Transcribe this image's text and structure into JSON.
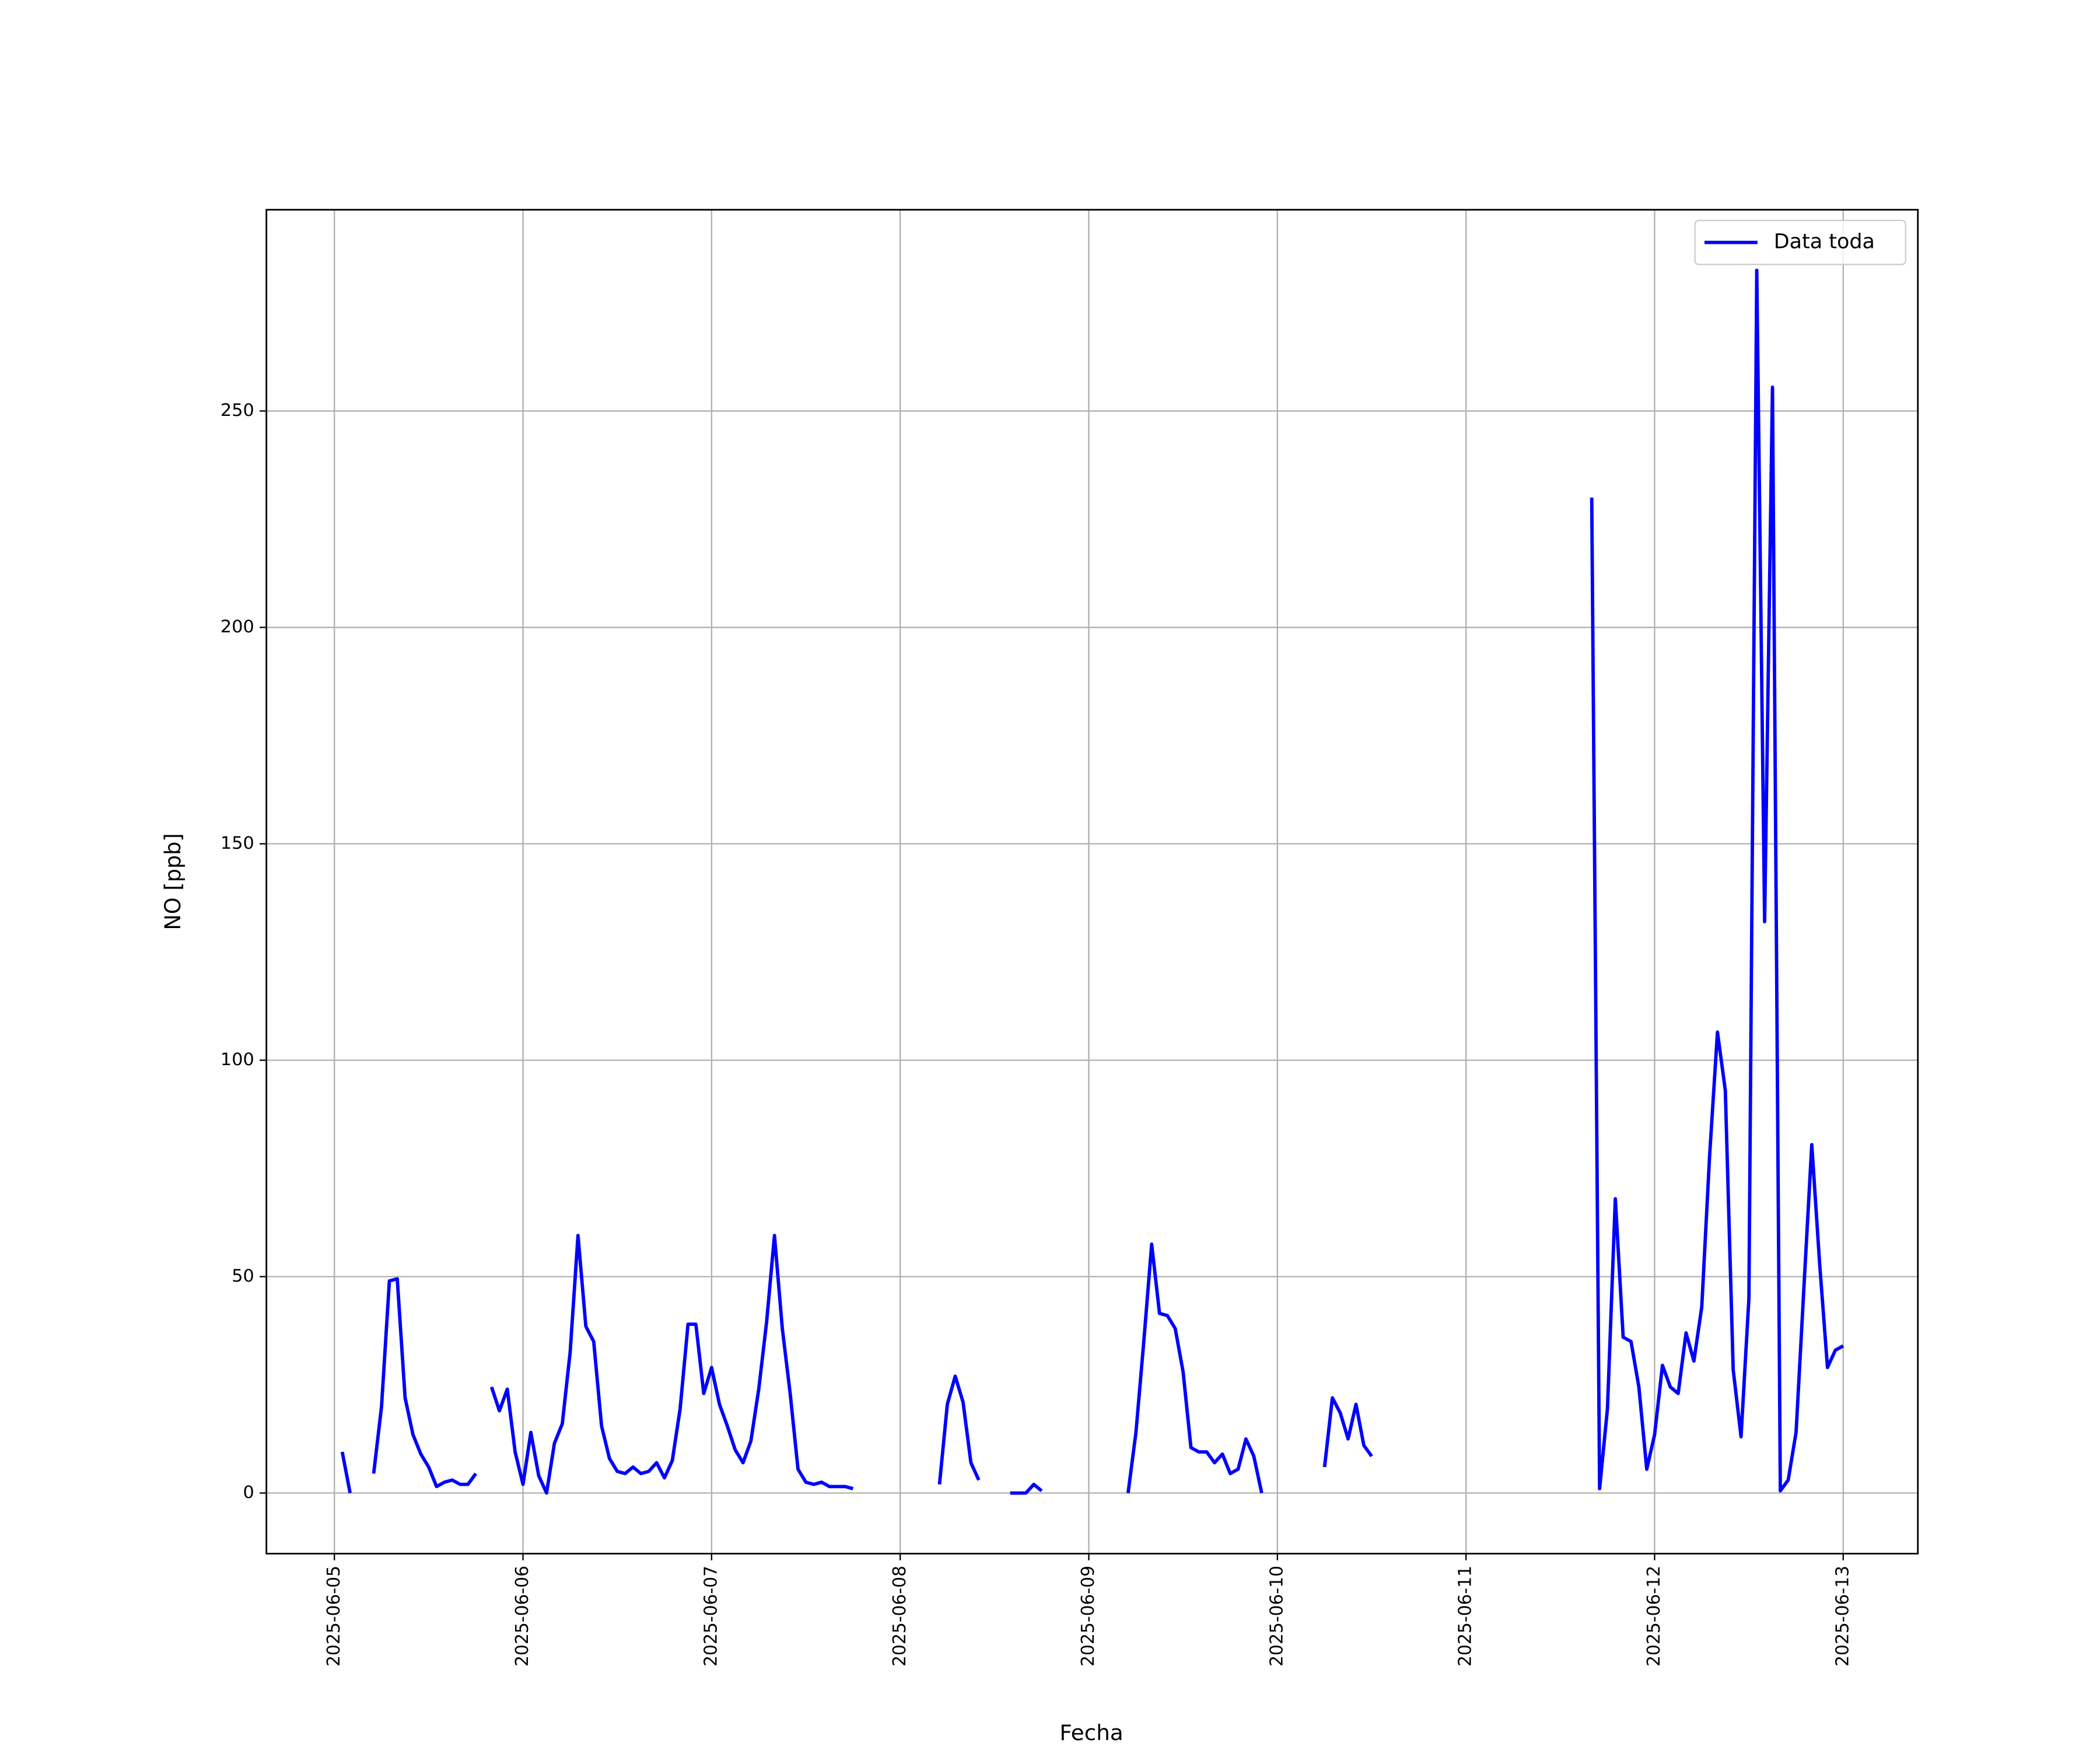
{
  "chart_data": {
    "type": "line",
    "xlabel": "Fecha",
    "ylabel": "NO [ppb]",
    "x": [
      "2025-06-05 01:00",
      "2025-06-05 02:00",
      "2025-06-05 03:00",
      "2025-06-05 05:00",
      "2025-06-05 06:00",
      "2025-06-05 07:00",
      "2025-06-05 08:00",
      "2025-06-05 09:00",
      "2025-06-05 10:00",
      "2025-06-05 11:00",
      "2025-06-05 12:00",
      "2025-06-05 13:00",
      "2025-06-05 14:00",
      "2025-06-05 15:00",
      "2025-06-05 16:00",
      "2025-06-05 17:00",
      "2025-06-05 18:00",
      "2025-06-05 19:00",
      "2025-06-05 20:00",
      "2025-06-05 21:00",
      "2025-06-05 22:00",
      "2025-06-05 23:00",
      "2025-06-06 00:00",
      "2025-06-06 01:00",
      "2025-06-06 02:00",
      "2025-06-06 03:00",
      "2025-06-06 04:00",
      "2025-06-06 05:00",
      "2025-06-06 06:00",
      "2025-06-06 07:00",
      "2025-06-06 08:00",
      "2025-06-06 09:00",
      "2025-06-06 10:00",
      "2025-06-06 11:00",
      "2025-06-06 12:00",
      "2025-06-06 13:00",
      "2025-06-06 14:00",
      "2025-06-06 15:00",
      "2025-06-06 16:00",
      "2025-06-06 17:00",
      "2025-06-06 18:00",
      "2025-06-06 19:00",
      "2025-06-06 20:00",
      "2025-06-06 21:00",
      "2025-06-06 22:00",
      "2025-06-06 23:00",
      "2025-06-07 00:00",
      "2025-06-07 01:00",
      "2025-06-07 02:00",
      "2025-06-07 03:00",
      "2025-06-07 04:00",
      "2025-06-07 05:00",
      "2025-06-07 06:00",
      "2025-06-07 07:00",
      "2025-06-07 08:00",
      "2025-06-07 09:00",
      "2025-06-07 10:00",
      "2025-06-07 11:00",
      "2025-06-07 12:00",
      "2025-06-07 13:00",
      "2025-06-07 14:00",
      "2025-06-07 15:00",
      "2025-06-07 16:00",
      "2025-06-07 17:00",
      "2025-06-07 18:00",
      "2025-06-07 19:00",
      "2025-06-08 05:00",
      "2025-06-08 06:00",
      "2025-06-08 07:00",
      "2025-06-08 08:00",
      "2025-06-08 09:00",
      "2025-06-08 10:00",
      "2025-06-08 11:00",
      "2025-06-08 14:00",
      "2025-06-08 15:00",
      "2025-06-08 16:00",
      "2025-06-08 17:00",
      "2025-06-08 18:00",
      "2025-06-08 19:00",
      "2025-06-09 05:00",
      "2025-06-09 06:00",
      "2025-06-09 07:00",
      "2025-06-09 08:00",
      "2025-06-09 09:00",
      "2025-06-09 10:00",
      "2025-06-09 11:00",
      "2025-06-09 12:00",
      "2025-06-09 13:00",
      "2025-06-09 14:00",
      "2025-06-09 15:00",
      "2025-06-09 16:00",
      "2025-06-09 17:00",
      "2025-06-09 18:00",
      "2025-06-09 19:00",
      "2025-06-09 20:00",
      "2025-06-09 21:00",
      "2025-06-09 22:00",
      "2025-06-09 23:00",
      "2025-06-10 06:00",
      "2025-06-10 07:00",
      "2025-06-10 08:00",
      "2025-06-10 09:00",
      "2025-06-10 10:00",
      "2025-06-10 11:00",
      "2025-06-10 12:00",
      "2025-06-10 13:00",
      "2025-06-11 16:00",
      "2025-06-11 17:00",
      "2025-06-11 18:00",
      "2025-06-11 19:00",
      "2025-06-11 20:00",
      "2025-06-11 21:00",
      "2025-06-11 22:00",
      "2025-06-11 23:00",
      "2025-06-12 00:00",
      "2025-06-12 01:00",
      "2025-06-12 02:00",
      "2025-06-12 03:00",
      "2025-06-12 04:00",
      "2025-06-12 05:00",
      "2025-06-12 06:00",
      "2025-06-12 07:00",
      "2025-06-12 08:00",
      "2025-06-12 09:00",
      "2025-06-12 10:00",
      "2025-06-12 11:00",
      "2025-06-12 12:00",
      "2025-06-12 13:00",
      "2025-06-12 14:00",
      "2025-06-12 15:00",
      "2025-06-12 16:00",
      "2025-06-12 17:00",
      "2025-06-12 18:00",
      "2025-06-12 19:00",
      "2025-06-12 20:00",
      "2025-06-12 21:00",
      "2025-06-12 22:00",
      "2025-06-12 23:00",
      "2025-06-13 00:00"
    ],
    "series": [
      {
        "name": "Data toda",
        "color": "#0000ff",
        "values": [
          9.5,
          0,
          null,
          4.5,
          20,
          49,
          49.5,
          22,
          13.5,
          9,
          6,
          1.5,
          2.5,
          3,
          2,
          2,
          4.5,
          null,
          24.5,
          19,
          24,
          9.5,
          2,
          14,
          4,
          0,
          11.5,
          16,
          32.5,
          59.5,
          38.5,
          35,
          15.5,
          8,
          5,
          4.5,
          6,
          4.5,
          5,
          7,
          3.5,
          7.5,
          19.5,
          39,
          39,
          23,
          29,
          20.5,
          15.5,
          10,
          7,
          12,
          24,
          39.5,
          59.5,
          38,
          23,
          5.5,
          2.5,
          2,
          2.5,
          1.5,
          1.5,
          1.5,
          1,
          null,
          2,
          20.5,
          27,
          21,
          7,
          3,
          null,
          0,
          0,
          0,
          2,
          0.5,
          null,
          0,
          14,
          35,
          57.5,
          41.5,
          41,
          38,
          28,
          10.5,
          9.5,
          9.5,
          7,
          9,
          4.5,
          5.5,
          12.5,
          8.5,
          0,
          null,
          6,
          22,
          18.5,
          12.5,
          20.5,
          11,
          8.5,
          null,
          230,
          1,
          19.5,
          68,
          36,
          35,
          24.5,
          5.5,
          13.5,
          29.5,
          24.5,
          23,
          37,
          30.5,
          43,
          78,
          106.5,
          93,
          28.5,
          13,
          45,
          282.5,
          132,
          255.5,
          0.5,
          3,
          14,
          47.5,
          80.5,
          53,
          29,
          33,
          34
        ]
      }
    ],
    "xlim": [
      "2025-06-04 15:21",
      "2025-06-13 09:30"
    ],
    "xticks": [
      "2025-06-05",
      "2025-06-06",
      "2025-06-07",
      "2025-06-08",
      "2025-06-09",
      "2025-06-10",
      "2025-06-11",
      "2025-06-12",
      "2025-06-13"
    ],
    "ylim": [
      -14,
      296.5
    ],
    "yticks": [
      0,
      50,
      100,
      150,
      200,
      250
    ],
    "grid": true,
    "legend": "upper right"
  }
}
